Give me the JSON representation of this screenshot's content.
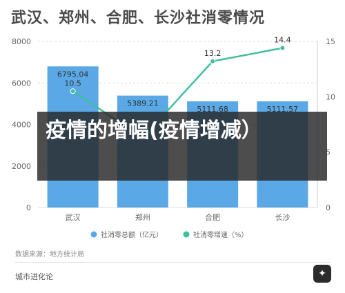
{
  "page": {
    "title": "武汉、郑州、合肥、长沙社消零情况",
    "source": "数据来源：地方统计局",
    "brand": "城市进化论",
    "overlay_text": "疫情的增幅(疫情增减）"
  },
  "colors": {
    "bar": "#5aa9e6",
    "line": "#3fbfa0",
    "axis_text": "#666666",
    "grid": "#dddddd",
    "title": "#4a4a4a"
  },
  "chart_data": {
    "type": "bar",
    "categories": [
      "武汉",
      "郑州",
      "合肥",
      "长沙"
    ],
    "series": [
      {
        "name": "社消零总额（亿元）",
        "type": "bar",
        "axis": "left",
        "values": [
          6795.04,
          5389.21,
          5111.68,
          5111.57
        ],
        "labels": [
          "6795.04",
          "5389.21",
          "5111.68",
          "5111.57"
        ]
      },
      {
        "name": "社消零增速（%）",
        "type": "line",
        "axis": "right",
        "values": [
          10.5,
          6.3,
          13.2,
          14.4
        ],
        "labels": [
          "10.5",
          "",
          "13.2",
          "14.4"
        ]
      }
    ],
    "ylim": [
      0,
      8000
    ],
    "yticks": [
      0,
      2000,
      4000,
      6000,
      8000
    ],
    "y2lim": [
      0,
      15
    ],
    "y2ticks": [
      0,
      5,
      10,
      15
    ],
    "legend_position": "bottom",
    "grid": true
  }
}
